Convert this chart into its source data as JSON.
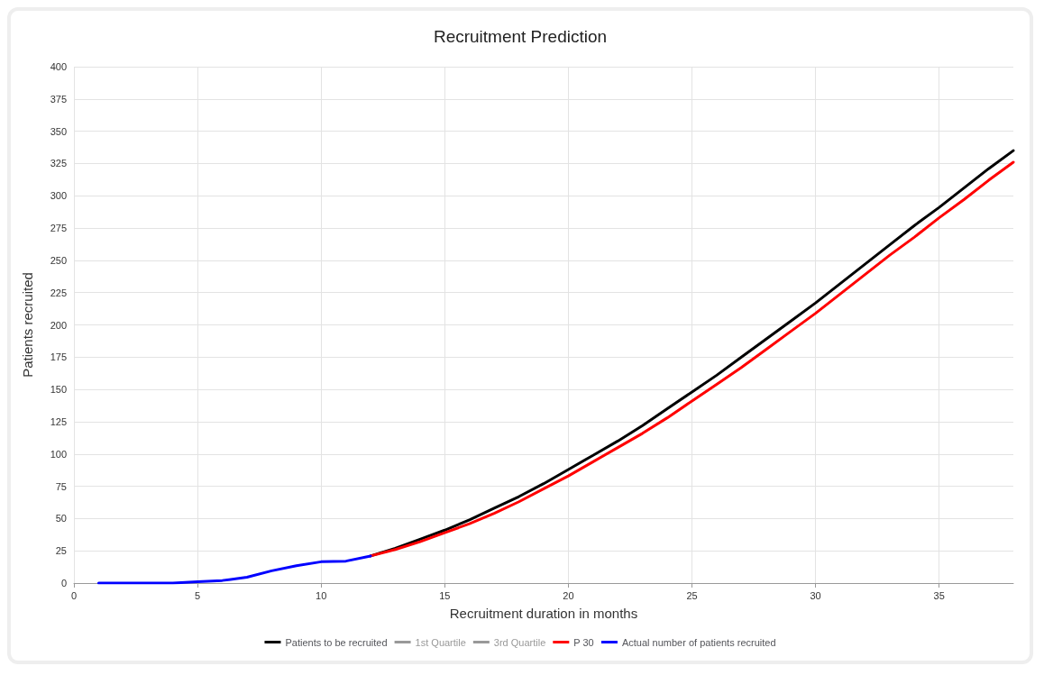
{
  "chart_data": {
    "type": "line",
    "title": "Recruitment Prediction",
    "xlabel": "Recruitment duration in months",
    "ylabel": "Patients recruited",
    "xlim": [
      0,
      38
    ],
    "xticks": [
      0,
      5,
      10,
      15,
      20,
      25,
      30,
      35
    ],
    "ylim": [
      0,
      400
    ],
    "yticks": [
      0,
      25,
      50,
      75,
      100,
      125,
      150,
      175,
      200,
      225,
      250,
      275,
      300,
      325,
      350,
      375,
      400
    ],
    "grid": true,
    "legend": "bottom",
    "marker": "none",
    "line_style": "solid",
    "series": [
      {
        "name": "Patients to be recruited",
        "color": "#000000",
        "x": [
          12,
          13,
          14,
          15,
          16,
          17,
          18,
          19,
          20,
          21,
          22,
          23,
          24,
          25,
          26,
          27,
          28,
          29,
          30,
          31,
          32,
          33,
          34,
          35,
          36,
          37,
          38
        ],
        "values": [
          21,
          27,
          34,
          41,
          49,
          58,
          67,
          77,
          88,
          99,
          110,
          122,
          135,
          148,
          161,
          175,
          189,
          203,
          217,
          232,
          247,
          262,
          277,
          291,
          306,
          321,
          335
        ]
      },
      {
        "name": "1st Quartile",
        "color": "#999999"
      },
      {
        "name": "3rd Quartile",
        "color": "#999999"
      },
      {
        "name": "P 30",
        "color": "#ff0000",
        "x": [
          12,
          13,
          14,
          15,
          16,
          17,
          18,
          19,
          20,
          21,
          22,
          23,
          24,
          25,
          26,
          27,
          28,
          29,
          30,
          31,
          32,
          33,
          34,
          35,
          36,
          37,
          38
        ],
        "values": [
          21,
          26,
          32,
          39,
          46,
          54,
          63,
          73,
          83,
          94,
          105,
          116,
          128,
          141,
          154,
          167,
          181,
          195,
          209,
          224,
          239,
          254,
          268,
          283,
          297,
          312,
          326
        ]
      },
      {
        "name": "Actual number of patients recruited",
        "color": "#0000ff",
        "x": [
          1,
          2,
          3,
          4,
          5,
          6,
          7,
          8,
          9,
          10,
          11,
          12
        ],
        "values": [
          0,
          0,
          0,
          0,
          1,
          2,
          4.5,
          9.5,
          13.5,
          16.5,
          17,
          21
        ]
      }
    ]
  }
}
